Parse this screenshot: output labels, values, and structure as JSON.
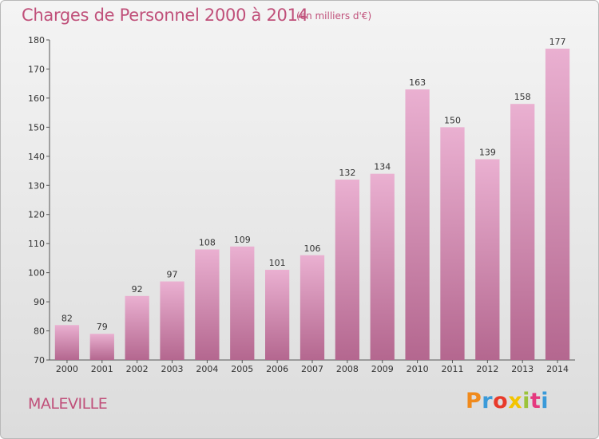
{
  "header": {
    "title": "Charges de Personnel 2000 à 2014",
    "subtitle": "(en milliers d'€)"
  },
  "footer": {
    "commune": "MALEVILLE",
    "logo_text": "Proxiti",
    "logo_colors": [
      "#f08a1c",
      "#3a9ad9",
      "#e83a2a",
      "#f3c400",
      "#9bc33a",
      "#e5397f",
      "#3a9ad9"
    ]
  },
  "colors": {
    "bar_top": "#eab0d1",
    "bar_bottom": "#b4678f",
    "text": "#c0507a"
  },
  "chart_data": {
    "type": "bar",
    "categories": [
      "2000",
      "2001",
      "2002",
      "2003",
      "2004",
      "2005",
      "2006",
      "2007",
      "2008",
      "2009",
      "2010",
      "2011",
      "2012",
      "2013",
      "2014"
    ],
    "values": [
      82,
      79,
      92,
      97,
      108,
      109,
      101,
      106,
      132,
      134,
      163,
      150,
      139,
      158,
      177
    ],
    "ylim": [
      70,
      180
    ],
    "yticks": [
      70,
      80,
      90,
      100,
      110,
      120,
      130,
      140,
      150,
      160,
      170,
      180
    ],
    "grid": false
  }
}
